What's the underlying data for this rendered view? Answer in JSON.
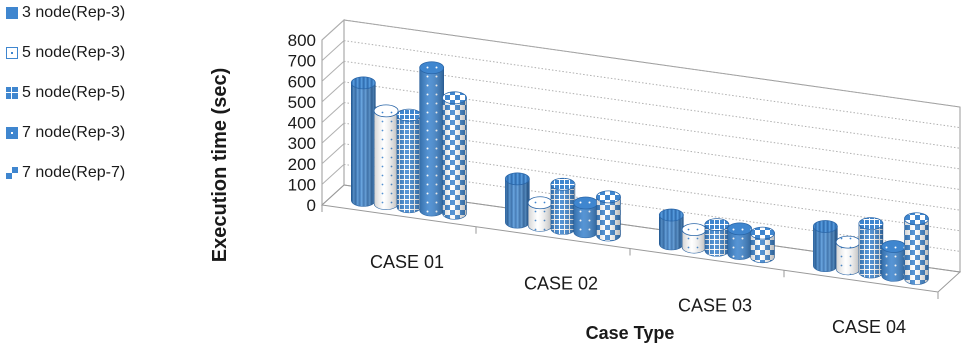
{
  "chart_data": {
    "type": "bar",
    "subtype": "3d-cylinder",
    "title": "",
    "xlabel": "Case Type",
    "ylabel": "Execution time (sec)",
    "ylim": [
      0,
      800
    ],
    "yticks": [
      "0",
      "100",
      "200",
      "300",
      "400",
      "500",
      "600",
      "700",
      "800"
    ],
    "categories": [
      "CASE 01",
      "CASE 02",
      "CASE 03",
      "CASE 04"
    ],
    "series": [
      {
        "name": "3 node(Rep-3)",
        "values": [
          570,
          210,
          140,
          190
        ],
        "color": "#3f86cf",
        "pattern": "solid"
      },
      {
        "name": "5 node(Rep-3)",
        "values": [
          450,
          110,
          85,
          130
        ],
        "color": "#3f86cf",
        "pattern": "dots"
      },
      {
        "name": "5 node(Rep-5)",
        "values": [
          445,
          215,
          125,
          235
        ],
        "color": "#3f86cf",
        "pattern": "grid"
      },
      {
        "name": "7 node(Rep-3)",
        "values": [
          690,
          140,
          120,
          140
        ],
        "color": "#3f86cf",
        "pattern": "dots-dark"
      },
      {
        "name": "7 node(Rep-7)",
        "values": [
          560,
          185,
          115,
          290
        ],
        "color": "#3f86cf",
        "pattern": "checker"
      }
    ],
    "grid": true,
    "legend_position": "left"
  }
}
